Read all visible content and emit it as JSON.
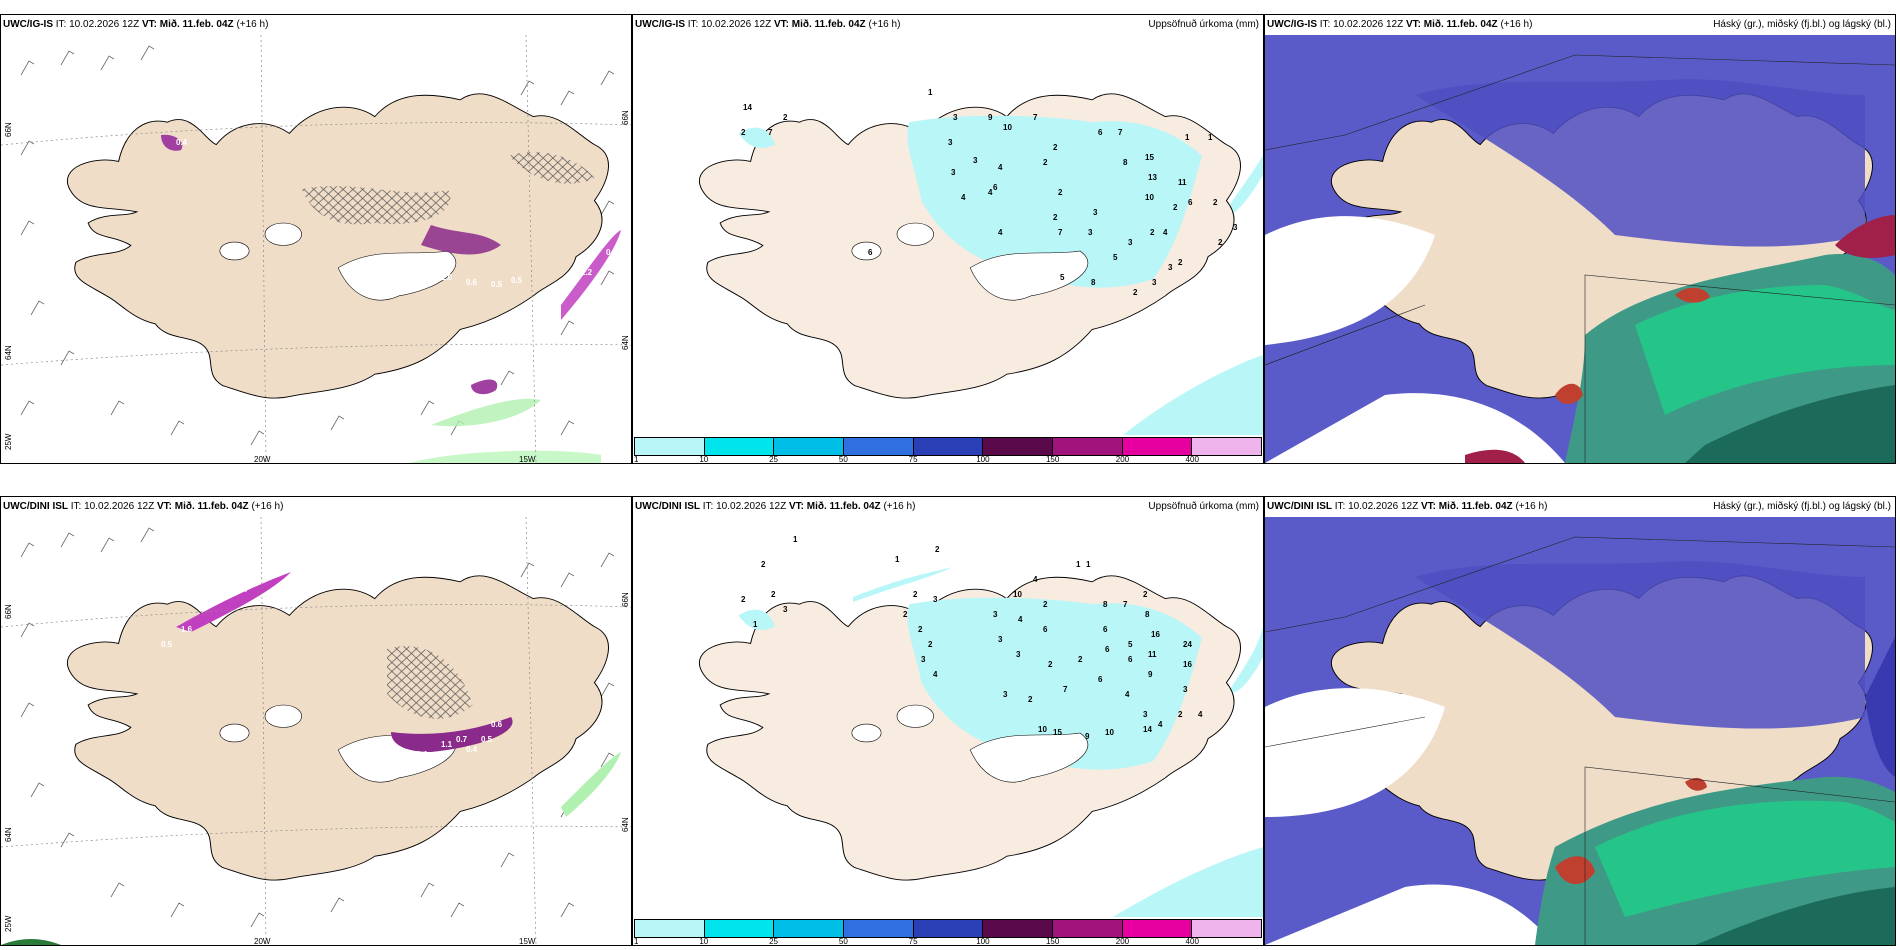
{
  "panels": [
    {
      "model": "UWC/IG-IS",
      "it_label": "IT:",
      "it": "10.02.2026 12Z",
      "vt_label": "VT:",
      "vt": "Mið. 11.feb. 04Z",
      "lead": "(+16 h)",
      "title_right": ""
    },
    {
      "model": "UWC/IG-IS",
      "it_label": "IT:",
      "it": "10.02.2026 12Z",
      "vt_label": "VT:",
      "vt": "Mið. 11.feb. 04Z",
      "lead": "(+16 h)",
      "title_right": "Uppsöfnuð úrkoma (mm)"
    },
    {
      "model": "UWC/IG-IS",
      "it_label": "IT:",
      "it": "10.02.2026 12Z",
      "vt_label": "VT:",
      "vt": "Mið. 11.feb. 04Z",
      "lead": "(+16 h)",
      "title_right": "Háský (gr.), miðský (fj.bl.) og lágský (bl.)"
    },
    {
      "model": "UWC/DINI ISL",
      "it_label": "IT:",
      "it": "10.02.2026 12Z",
      "vt_label": "VT:",
      "vt": "Mið. 11.feb. 04Z",
      "lead": "(+16 h)",
      "title_right": ""
    },
    {
      "model": "UWC/DINI ISL",
      "it_label": "IT:",
      "it": "10.02.2026 12Z",
      "vt_label": "VT:",
      "vt": "Mið. 11.feb. 04Z",
      "lead": "(+16 h)",
      "title_right": "Uppsöfnuð úrkoma (mm)"
    },
    {
      "model": "UWC/DINI ISL",
      "it_label": "IT:",
      "it": "10.02.2026 12Z",
      "vt_label": "VT:",
      "vt": "Mið. 11.feb. 04Z",
      "lead": "(+16 h)",
      "title_right": "Háský (gr.), miðský (fj.bl.) og lágský (bl.)"
    }
  ],
  "graticule": {
    "lon_20w": "20W",
    "lon_15w": "15W",
    "lat_66n": "66N",
    "lat_64n": "64N",
    "lon_25w": "25W"
  },
  "colorbar": {
    "ticks": [
      "1",
      "10",
      "25",
      "50",
      "75",
      "100",
      "150",
      "200",
      "400"
    ],
    "colors": [
      "#b9f6f8",
      "#00e4ec",
      "#00bfe6",
      "#2f6fe0",
      "#2a3fb6",
      "#5a0a4a",
      "#a0147c",
      "#e600a0",
      "#f0b4ec"
    ]
  },
  "precip_numbers_top": [
    "14",
    "2",
    "7",
    "2",
    "1",
    "3",
    "9",
    "10",
    "7",
    "2",
    "6",
    "7",
    "15",
    "1",
    "1",
    "3",
    "3",
    "3",
    "4",
    "2",
    "8",
    "13",
    "11",
    "4",
    "4",
    "6",
    "2",
    "10",
    "2",
    "6",
    "4",
    "2",
    "7",
    "3",
    "2",
    "3",
    "3",
    "5",
    "2",
    "4",
    "8",
    "2",
    "3",
    "3",
    "2",
    "2",
    "3",
    "6",
    "5"
  ],
  "precip_numbers_bottom": [
    "2",
    "1",
    "2",
    "2",
    "1",
    "2",
    "3",
    "1",
    "2",
    "3",
    "10",
    "4",
    "2",
    "1",
    "1",
    "2",
    "8",
    "7",
    "2",
    "2",
    "3",
    "4",
    "6",
    "8",
    "6",
    "2",
    "3",
    "3",
    "16",
    "5",
    "3",
    "4",
    "2",
    "11",
    "24",
    "6",
    "6",
    "2",
    "9",
    "16",
    "3",
    "2",
    "7",
    "6",
    "4",
    "3",
    "10",
    "15",
    "9",
    "10",
    "3",
    "2",
    "14",
    "4",
    "4"
  ],
  "ice_values_top": [
    "0.5",
    "2.0",
    "0.6",
    "0.5",
    "0.5",
    "0.4",
    "1.2",
    "0.4",
    "0.5"
  ],
  "ice_values_bottom": [
    "1.6",
    "0.4",
    "0.4",
    "1.1",
    "0.4",
    "0.5",
    "0.7",
    "1.4",
    "0.6",
    "0.5"
  ]
}
